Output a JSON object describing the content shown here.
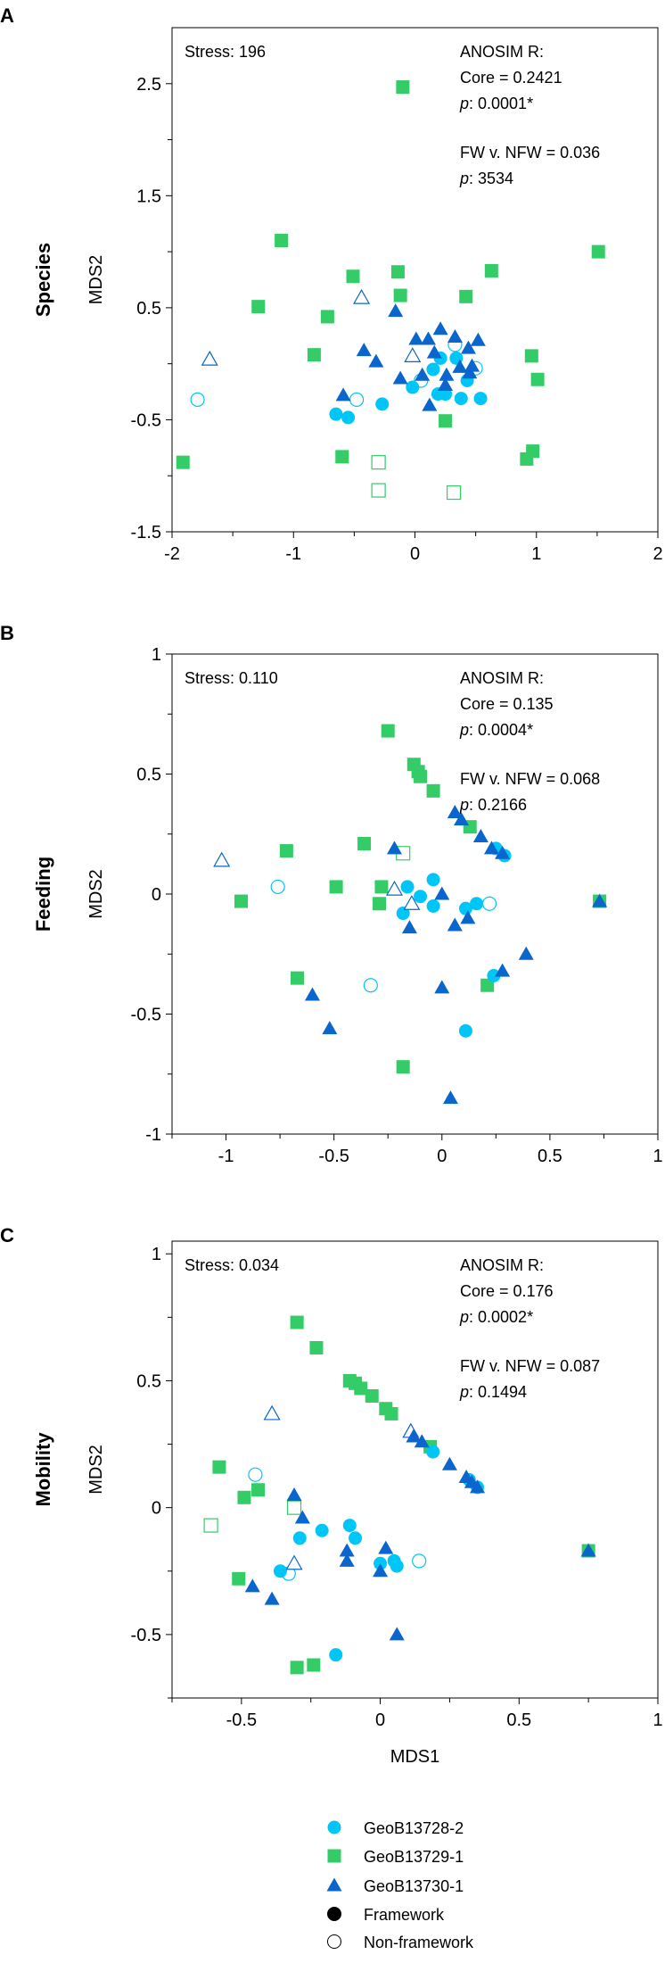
{
  "colors": {
    "GeoB13728-2": "#00C6F7",
    "GeoB13729-1": "#33CC66",
    "GeoB13730-1": "#0A66CC"
  },
  "legend": [
    {
      "label": "GeoB13728-2",
      "marker": "circle",
      "fill": "#00C6F7"
    },
    {
      "label": "GeoB13729-1",
      "marker": "square",
      "fill": "#33CC66"
    },
    {
      "label": "GeoB13730-1",
      "marker": "triangle",
      "fill": "#0A66CC"
    },
    {
      "label": "Framework",
      "marker": "circle",
      "fill": "#000000"
    },
    {
      "label": "Non-framework",
      "marker": "circle",
      "fill": "none"
    }
  ],
  "chart_data": [
    {
      "type": "scatter",
      "panel_label": "A",
      "title": "Species",
      "xlabel": "",
      "ylabel": "MDS2",
      "xlim": [
        -2,
        2
      ],
      "ylim": [
        -1.5,
        3
      ],
      "xticks": [
        -2,
        -1,
        0,
        1,
        2
      ],
      "xminor": [
        -1.5,
        -0.5,
        0.5,
        1.5
      ],
      "yticks": [
        2.5,
        1.5,
        0.5,
        -0.5,
        -1.5
      ],
      "yminor": [
        2,
        1,
        0,
        -1
      ],
      "stress": "Stress: 196",
      "anosim": {
        "title": "ANOSIM R:",
        "core": "Core = 0.2421",
        "core_p_label": "p",
        "core_p": ": 0.0001*",
        "fw": "FW v. NFW = 0.036",
        "fw_p_label": "p",
        "fw_p": ": 3534"
      },
      "series": [
        {
          "name": "GeoB13729-1",
          "marker": "square",
          "framework": [
            [
              -0.1,
              2.47
            ],
            [
              -1.1,
              1.1
            ],
            [
              1.51,
              1.0
            ],
            [
              -0.51,
              0.78
            ],
            [
              -0.14,
              0.82
            ],
            [
              0.63,
              0.83
            ],
            [
              -1.29,
              0.51
            ],
            [
              -0.12,
              0.61
            ],
            [
              0.42,
              0.6
            ],
            [
              -0.72,
              0.42
            ],
            [
              -0.83,
              0.08
            ],
            [
              0.96,
              0.07
            ],
            [
              1.01,
              -0.14
            ],
            [
              0.25,
              -0.51
            ],
            [
              -1.91,
              -0.88
            ],
            [
              -0.6,
              -0.83
            ],
            [
              0.97,
              -0.78
            ],
            [
              0.92,
              -0.85
            ]
          ],
          "non_framework": [
            [
              -0.3,
              -0.88
            ],
            [
              -0.3,
              -1.13
            ],
            [
              0.32,
              -1.15
            ]
          ]
        },
        {
          "name": "GeoB13728-2",
          "marker": "circle",
          "framework": [
            [
              -0.65,
              -0.45
            ],
            [
              -0.55,
              -0.48
            ],
            [
              -0.27,
              -0.36
            ],
            [
              -0.02,
              -0.21
            ],
            [
              0.15,
              -0.05
            ],
            [
              0.21,
              0.05
            ],
            [
              0.34,
              0.05
            ],
            [
              0.19,
              -0.27
            ],
            [
              0.25,
              -0.27
            ],
            [
              0.43,
              -0.15
            ],
            [
              0.38,
              -0.31
            ],
            [
              0.54,
              -0.31
            ]
          ],
          "non_framework": [
            [
              -1.79,
              -0.32
            ],
            [
              -0.48,
              -0.32
            ],
            [
              0.33,
              0.17
            ],
            [
              0.5,
              -0.04
            ],
            [
              0.05,
              -0.15
            ]
          ]
        },
        {
          "name": "GeoB13730-1",
          "marker": "triangle",
          "framework": [
            [
              -0.16,
              0.47
            ],
            [
              0.21,
              0.31
            ],
            [
              0.01,
              0.22
            ],
            [
              0.11,
              0.22
            ],
            [
              0.33,
              0.24
            ],
            [
              0.52,
              0.21
            ],
            [
              -0.42,
              0.12
            ],
            [
              0.16,
              0.1
            ],
            [
              0.44,
              0.14
            ],
            [
              -0.32,
              0.02
            ],
            [
              0.37,
              -0.03
            ],
            [
              0.47,
              -0.02
            ],
            [
              -0.12,
              -0.13
            ],
            [
              0.06,
              -0.1
            ],
            [
              0.26,
              -0.1
            ],
            [
              0.45,
              -0.08
            ],
            [
              0.25,
              -0.19
            ],
            [
              -0.59,
              -0.28
            ],
            [
              0.12,
              -0.37
            ]
          ],
          "non_framework": [
            [
              -0.44,
              0.59
            ],
            [
              -1.69,
              0.04
            ],
            [
              -0.02,
              0.07
            ]
          ]
        }
      ]
    },
    {
      "type": "scatter",
      "panel_label": "B",
      "title": "Feeding",
      "xlabel": "",
      "ylabel": "MDS2",
      "xlim": [
        -1.25,
        1
      ],
      "ylim": [
        -1,
        1
      ],
      "xticks": [
        -1,
        -0.5,
        0,
        0.5,
        1
      ],
      "xminor": [
        -1.25,
        -0.75,
        -0.25,
        0.25,
        0.75
      ],
      "yticks": [
        1,
        0.5,
        0,
        -0.5,
        -1
      ],
      "yminor": [
        0.75,
        0.25,
        -0.25,
        -0.75
      ],
      "stress": "Stress: 0.110",
      "anosim": {
        "title": "ANOSIM R:",
        "core": "Core = 0.135",
        "core_p_label": "p",
        "core_p": ": 0.0004*",
        "fw": "FW v. NFW = 0.068",
        "fw_p_label": "p",
        "fw_p": ": 0.2166"
      },
      "series": [
        {
          "name": "GeoB13729-1",
          "marker": "square",
          "framework": [
            [
              -0.25,
              0.68
            ],
            [
              -0.13,
              0.54
            ],
            [
              -0.11,
              0.51
            ],
            [
              -0.1,
              0.49
            ],
            [
              -0.04,
              0.43
            ],
            [
              0.13,
              0.28
            ],
            [
              -0.36,
              0.21
            ],
            [
              -0.72,
              0.18
            ],
            [
              -0.49,
              0.03
            ],
            [
              -0.28,
              0.03
            ],
            [
              -0.29,
              -0.04
            ],
            [
              -0.93,
              -0.03
            ],
            [
              0.73,
              -0.03
            ],
            [
              -0.67,
              -0.35
            ],
            [
              0.21,
              -0.38
            ],
            [
              -0.18,
              -0.72
            ]
          ],
          "non_framework": [
            [
              -0.18,
              0.17
            ]
          ]
        },
        {
          "name": "GeoB13728-2",
          "marker": "circle",
          "framework": [
            [
              -0.04,
              0.06
            ],
            [
              -0.16,
              0.03
            ],
            [
              -0.1,
              -0.01
            ],
            [
              -0.18,
              -0.08
            ],
            [
              -0.04,
              -0.05
            ],
            [
              0.11,
              -0.06
            ],
            [
              0.16,
              -0.04
            ],
            [
              0.25,
              0.19
            ],
            [
              0.29,
              0.16
            ],
            [
              0.24,
              -0.34
            ],
            [
              0.11,
              -0.57
            ]
          ],
          "non_framework": [
            [
              -0.76,
              0.03
            ],
            [
              -0.33,
              -0.38
            ],
            [
              0.22,
              -0.04
            ]
          ]
        },
        {
          "name": "GeoB13730-1",
          "marker": "triangle",
          "framework": [
            [
              0.06,
              0.34
            ],
            [
              0.09,
              0.31
            ],
            [
              0.18,
              0.24
            ],
            [
              0.23,
              0.19
            ],
            [
              0.28,
              0.17
            ],
            [
              -0.22,
              0.19
            ],
            [
              0.0,
              0.0
            ],
            [
              -0.15,
              -0.14
            ],
            [
              0.06,
              -0.13
            ],
            [
              0.12,
              -0.1
            ],
            [
              0.39,
              -0.25
            ],
            [
              0.28,
              -0.32
            ],
            [
              0.0,
              -0.39
            ],
            [
              -0.6,
              -0.42
            ],
            [
              -0.52,
              -0.56
            ],
            [
              0.04,
              -0.85
            ],
            [
              0.73,
              -0.03
            ]
          ],
          "non_framework": [
            [
              -1.02,
              0.14
            ],
            [
              -0.22,
              0.02
            ],
            [
              -0.14,
              -0.04
            ]
          ]
        }
      ]
    },
    {
      "type": "scatter",
      "panel_label": "C",
      "title": "Mobility",
      "xlabel": "MDS1",
      "ylabel": "MDS2",
      "xlim": [
        -0.75,
        1
      ],
      "ylim": [
        -0.75,
        1.05
      ],
      "xticks": [
        -0.5,
        0,
        0.5,
        1
      ],
      "xminor": [
        -0.75,
        -0.25,
        0.25,
        0.75
      ],
      "yticks": [
        1,
        0.5,
        0,
        -0.5
      ],
      "yminor": [
        0.75,
        0.25,
        -0.25,
        -0.75
      ],
      "stress": "Stress: 0.034",
      "anosim": {
        "title": "ANOSIM R:",
        "core": "Core = 0.176",
        "core_p_label": "p",
        "core_p": ": 0.0002*",
        "fw": "FW v. NFW = 0.087",
        "fw_p_label": "p",
        "fw_p": ": 0.1494"
      },
      "series": [
        {
          "name": "GeoB13729-1",
          "marker": "square",
          "framework": [
            [
              -0.3,
              0.73
            ],
            [
              -0.23,
              0.63
            ],
            [
              -0.11,
              0.5
            ],
            [
              -0.09,
              0.49
            ],
            [
              -0.07,
              0.47
            ],
            [
              -0.03,
              0.44
            ],
            [
              0.02,
              0.39
            ],
            [
              0.04,
              0.37
            ],
            [
              0.18,
              0.24
            ],
            [
              -0.58,
              0.16
            ],
            [
              -0.49,
              0.04
            ],
            [
              -0.44,
              0.07
            ],
            [
              -0.51,
              -0.28
            ],
            [
              -0.3,
              -0.63
            ],
            [
              -0.24,
              -0.62
            ],
            [
              0.75,
              -0.17
            ]
          ],
          "non_framework": [
            [
              -0.61,
              -0.07
            ],
            [
              -0.31,
              0.0
            ]
          ]
        },
        {
          "name": "GeoB13728-2",
          "marker": "circle",
          "framework": [
            [
              0.19,
              0.22
            ],
            [
              0.32,
              0.11
            ],
            [
              0.35,
              0.08
            ],
            [
              -0.29,
              -0.12
            ],
            [
              -0.21,
              -0.09
            ],
            [
              -0.11,
              -0.07
            ],
            [
              -0.09,
              -0.12
            ],
            [
              0.0,
              -0.22
            ],
            [
              0.05,
              -0.21
            ],
            [
              0.06,
              -0.23
            ],
            [
              -0.36,
              -0.25
            ],
            [
              -0.16,
              -0.58
            ]
          ],
          "non_framework": [
            [
              -0.45,
              0.13
            ],
            [
              -0.33,
              -0.26
            ],
            [
              0.14,
              -0.21
            ]
          ]
        },
        {
          "name": "GeoB13730-1",
          "marker": "triangle",
          "framework": [
            [
              0.12,
              0.28
            ],
            [
              0.15,
              0.26
            ],
            [
              0.25,
              0.17
            ],
            [
              0.31,
              0.12
            ],
            [
              0.33,
              0.1
            ],
            [
              0.35,
              0.08
            ],
            [
              -0.31,
              0.05
            ],
            [
              -0.28,
              -0.04
            ],
            [
              -0.12,
              -0.17
            ],
            [
              -0.12,
              -0.21
            ],
            [
              0.02,
              -0.16
            ],
            [
              0.0,
              -0.25
            ],
            [
              -0.46,
              -0.31
            ],
            [
              -0.39,
              -0.36
            ],
            [
              0.06,
              -0.5
            ],
            [
              0.75,
              -0.17
            ]
          ],
          "non_framework": [
            [
              -0.39,
              0.37
            ],
            [
              0.11,
              0.3
            ],
            [
              -0.31,
              -0.22
            ]
          ]
        }
      ]
    }
  ]
}
